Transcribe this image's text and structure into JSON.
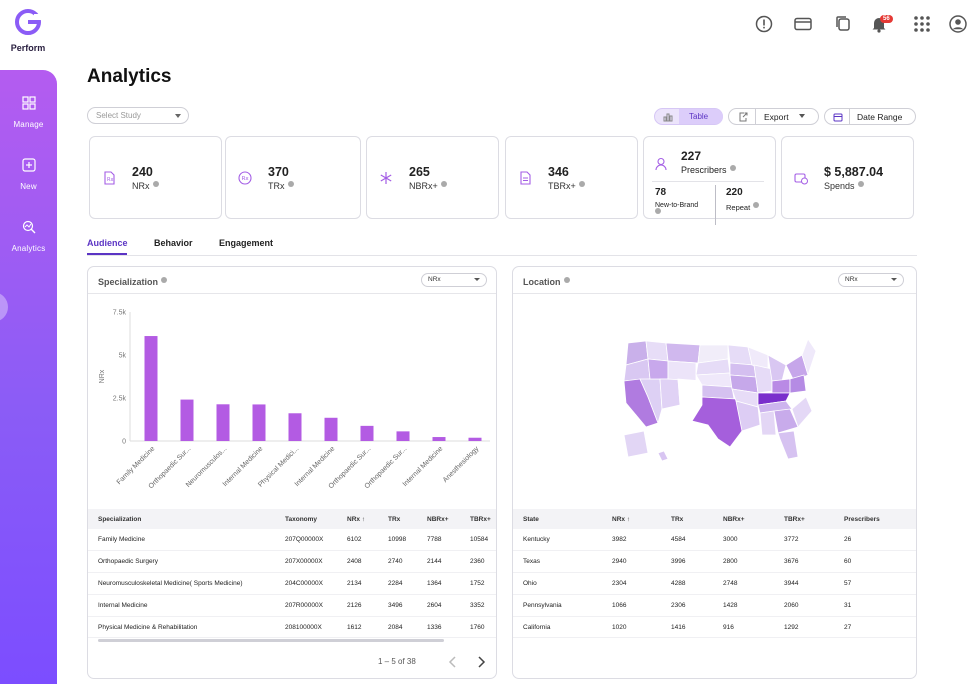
{
  "app": {
    "brand": "Perform",
    "logo_icon": "g-logo-icon"
  },
  "top_icons": [
    "alert-icon",
    "card-icon",
    "copy-icon",
    "bell-icon",
    "grid-icon",
    "user-icon"
  ],
  "notification_count": "56",
  "sidebar": {
    "items": [
      {
        "label": "Manage",
        "icon": "grid-icon"
      },
      {
        "label": "New",
        "icon": "plus-square-icon"
      },
      {
        "label": "Analytics",
        "icon": "analytics-icon",
        "active": true
      }
    ]
  },
  "page_title": "Analytics",
  "study_select": {
    "placeholder": "Select Study"
  },
  "toolbar": {
    "table_label": "Table",
    "export_label": "Export",
    "date_range_label": "Date Range"
  },
  "stats": [
    {
      "value": "240",
      "label": "NRx"
    },
    {
      "value": "370",
      "label": "TRx"
    },
    {
      "value": "265",
      "label": "NBRx+"
    },
    {
      "value": "346",
      "label": "TBRx+"
    }
  ],
  "prescribers": {
    "value": "227",
    "label": "Prescribers",
    "new_value": "78",
    "new_label": "New-to-Brand",
    "repeat_value": "220",
    "repeat_label": "Repeat"
  },
  "spends": {
    "value": "$ 5,887.04",
    "label": "Spends"
  },
  "tabs": [
    "Audience",
    "Behavior",
    "Engagement"
  ],
  "specialization_panel": {
    "title": "Specialization",
    "metric_select": "NRx",
    "columns": [
      "Specialization",
      "Taxonomy",
      "NRx ↑",
      "TRx",
      "NBRx+",
      "TBRx+"
    ],
    "rows": [
      [
        "Family Medicine",
        "207Q00000X",
        "6102",
        "10998",
        "7788",
        "10584"
      ],
      [
        "Orthopaedic Surgery",
        "207X00000X",
        "2408",
        "2740",
        "2144",
        "2360"
      ],
      [
        "Neuromusculoskeletal Medicine( Sports Medicine)",
        "204C00000X",
        "2134",
        "2284",
        "1364",
        "1752"
      ],
      [
        "Internal Medicine",
        "207R00000X",
        "2126",
        "3496",
        "2604",
        "3352"
      ],
      [
        "Physical Medicine & Rehabilitation",
        "208100000X",
        "1612",
        "2084",
        "1336",
        "1760"
      ]
    ],
    "pagination": "1 – 5 of 38"
  },
  "location_panel": {
    "title": "Location",
    "metric_select": "NRx",
    "columns": [
      "State",
      "NRx ↑",
      "TRx",
      "NBRx+",
      "TBRx+",
      "Prescribers"
    ],
    "rows": [
      [
        "Kentucky",
        "3982",
        "4584",
        "3000",
        "3772",
        "26"
      ],
      [
        "Texas",
        "2940",
        "3996",
        "2800",
        "3676",
        "60"
      ],
      [
        "Ohio",
        "2304",
        "4288",
        "2748",
        "3944",
        "57"
      ],
      [
        "Pennsylvania",
        "1066",
        "2306",
        "1428",
        "2060",
        "31"
      ],
      [
        "California",
        "1020",
        "1416",
        "916",
        "1292",
        "27"
      ]
    ]
  },
  "colors": {
    "accent": "#8b5cf6",
    "bar": "#b35be3",
    "tab_active": "#5b34c4"
  },
  "chart_data": {
    "type": "bar",
    "title": "",
    "xlabel": "",
    "ylabel": "NRx",
    "ylim": [
      0,
      7500
    ],
    "yticks": [
      "0",
      "2.5k",
      "5k",
      "7.5k"
    ],
    "categories": [
      "Family Medicine",
      "Orthopaedic Sur...",
      "Neuromusculos...",
      "Internal Medicine",
      "Physical Medici...",
      "Internal Medicine",
      "Orthopaedic Sur...",
      "Orthopaedic Sur...",
      "Internal Medicine",
      "Anesthesiology"
    ],
    "values": [
      6102,
      2408,
      2134,
      2126,
      1612,
      1350,
      880,
      560,
      230,
      190
    ],
    "grid": false
  }
}
